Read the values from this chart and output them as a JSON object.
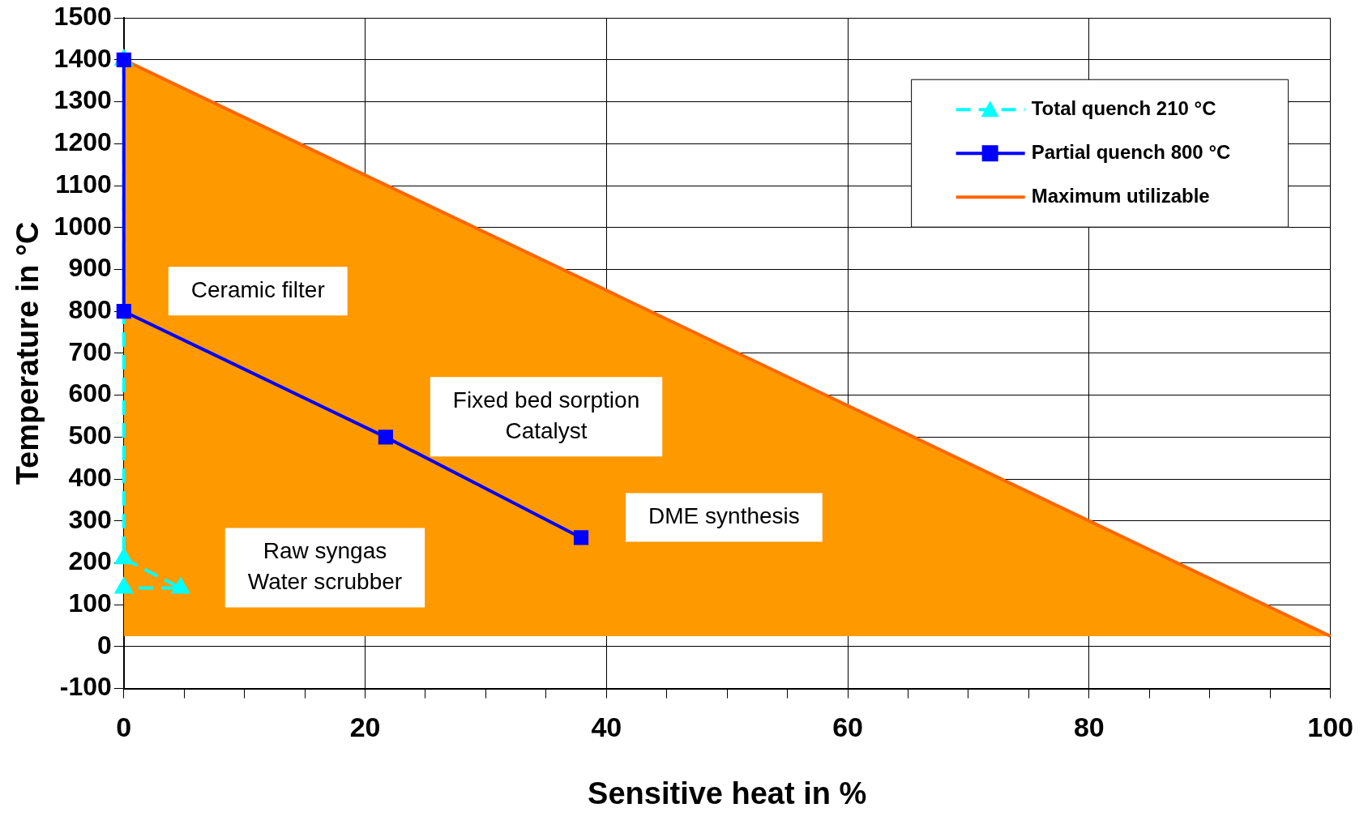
{
  "chart_data": {
    "type": "line",
    "xlabel": "Sensitive heat in %",
    "ylabel": "Temperature in °C",
    "xlim": [
      0,
      100
    ],
    "xticks": [
      0,
      {
        "value": 5,
        "label": null
      },
      {
        "value": 10,
        "label": null
      },
      {
        "value": 15,
        "label": null
      },
      20,
      {
        "value": 25,
        "label": null
      },
      {
        "value": 30,
        "label": null
      },
      {
        "value": 35,
        "label": null
      },
      40,
      {
        "value": 45,
        "label": null
      },
      {
        "value": 50,
        "label": null
      },
      {
        "value": 55,
        "label": null
      },
      60,
      {
        "value": 65,
        "label": null
      },
      {
        "value": 70,
        "label": null
      },
      {
        "value": 75,
        "label": null
      },
      80,
      {
        "value": 85,
        "label": null
      },
      {
        "value": 90,
        "label": null
      },
      {
        "value": 95,
        "label": null
      },
      100
    ],
    "ylim": [
      -100,
      1500
    ],
    "yticks": [
      -100,
      0,
      100,
      200,
      300,
      400,
      500,
      600,
      700,
      800,
      900,
      1000,
      1100,
      1200,
      1300,
      1400,
      1500
    ],
    "grid": true,
    "legend": "top right",
    "series": [
      {
        "name": "Total quench 210 °C",
        "color": "#00ffff",
        "marker": "triangle",
        "line_style": "dashed",
        "x": [
          0,
          0,
          4.7,
          0
        ],
        "values": [
          1400,
          210,
          140,
          140
        ]
      },
      {
        "name": "Partial quench 800 °C",
        "color": "#0000ff",
        "marker": "square",
        "line_style": "solid",
        "x": [
          0,
          0,
          21.7,
          37.9
        ],
        "values": [
          1400,
          800,
          500,
          260
        ]
      },
      {
        "name": "Maximum utilizable",
        "type": "area",
        "color": "#ff6600",
        "x": [
          0,
          100
        ],
        "values": [
          1400,
          25
        ]
      }
    ],
    "annotations": [
      {
        "text": "Ceramic filter",
        "x": 0,
        "y": 800
      },
      {
        "text": "Fixed bed sorption\nCatalyst",
        "x": 21.7,
        "y": 500
      },
      {
        "text": "DME synthesis",
        "x": 37.9,
        "y": 260
      },
      {
        "text": "Raw syngas\nWater scrubber",
        "x": 4.7,
        "y": 140
      }
    ]
  }
}
